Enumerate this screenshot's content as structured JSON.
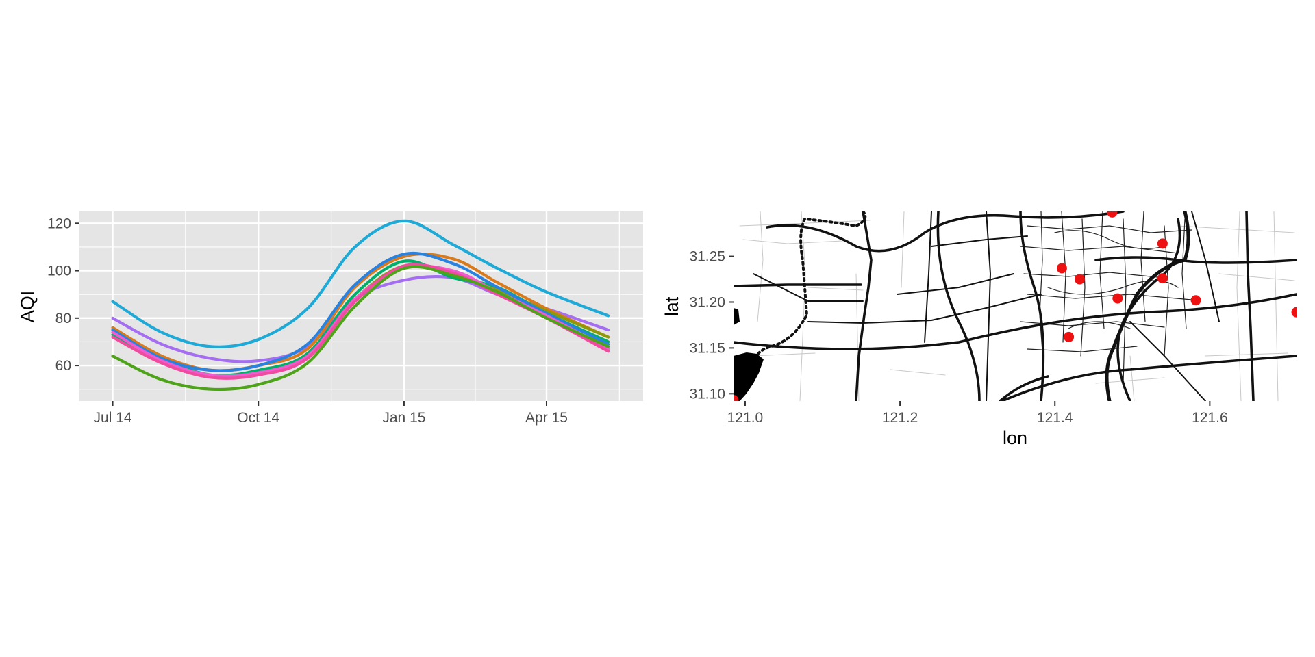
{
  "colors": {
    "panel_bg": "#e5e5e5",
    "grid": "#ffffff",
    "axis_text": "#4d4d4d",
    "title_text": "#000000",
    "station_marker": "#ee1111",
    "road": "#111111"
  },
  "chart_data": [
    {
      "type": "line",
      "xlabel": "",
      "ylabel": "AQI",
      "x_ticks": [
        "Jul 14",
        "Oct 14",
        "Jan 15",
        "Apr 15"
      ],
      "x_tick_dates": [
        "2014-07-01",
        "2014-10-01",
        "2015-01-01",
        "2015-04-01"
      ],
      "xlim": [
        "2014-06-10",
        "2015-06-01"
      ],
      "ylim": [
        45,
        125
      ],
      "y_ticks": [
        60,
        80,
        100,
        120
      ],
      "grid": true,
      "legend": "none",
      "x": [
        "2014-07-01",
        "2014-08-01",
        "2014-09-01",
        "2014-10-01",
        "2014-11-01",
        "2014-12-01",
        "2015-01-01",
        "2015-02-01",
        "2015-03-01",
        "2015-04-01",
        "2015-05-10"
      ],
      "series": [
        {
          "color": "#1fa9d6",
          "values": [
            87,
            74,
            68,
            71,
            84,
            110,
            121,
            111,
            101,
            91,
            81
          ]
        },
        {
          "color": "#a56ef2",
          "values": [
            80,
            69,
            63,
            62,
            68,
            88,
            96,
            97,
            90,
            84,
            75
          ]
        },
        {
          "color": "#d97a1c",
          "values": [
            76,
            64,
            58,
            60,
            67,
            93,
            106,
            105,
            95,
            84,
            72
          ]
        },
        {
          "color": "#8a9a0b",
          "values": [
            73,
            62,
            56,
            57,
            65,
            88,
            102,
            98,
            92,
            83,
            72
          ]
        },
        {
          "color": "#00b06a",
          "values": [
            73,
            63,
            56,
            58,
            65,
            90,
            104,
            97,
            93,
            82,
            70
          ]
        },
        {
          "color": "#2a82e0",
          "values": [
            75,
            63,
            58,
            60,
            69,
            94,
            107,
            103,
            93,
            82,
            69
          ]
        },
        {
          "color": "#f05bd0",
          "values": [
            74,
            62,
            56,
            57,
            64,
            88,
            101,
            100,
            91,
            81,
            67
          ]
        },
        {
          "color": "#ef4b9f",
          "values": [
            72,
            61,
            55,
            56,
            63,
            87,
            102,
            99,
            90,
            80,
            66
          ]
        },
        {
          "color": "#4fa31a",
          "values": [
            64,
            54,
            50,
            52,
            61,
            85,
            101,
            98,
            91,
            80,
            68
          ]
        }
      ]
    },
    {
      "type": "scatter",
      "xlabel": "lon",
      "ylabel": "lat",
      "x_ticks": [
        "121.0",
        "121.2",
        "121.4",
        "121.6"
      ],
      "y_ticks": [
        "31.10",
        "31.15",
        "31.20",
        "31.25"
      ],
      "xlim": [
        120.985,
        121.712
      ],
      "ylim": [
        31.092,
        31.299
      ],
      "grid": false,
      "legend": "none",
      "points": [
        {
          "lon": 121.474,
          "lat": 31.298
        },
        {
          "lon": 121.409,
          "lat": 31.237
        },
        {
          "lon": 121.432,
          "lat": 31.225
        },
        {
          "lon": 121.539,
          "lat": 31.264
        },
        {
          "lon": 121.539,
          "lat": 31.226
        },
        {
          "lon": 121.481,
          "lat": 31.204
        },
        {
          "lon": 121.582,
          "lat": 31.202
        },
        {
          "lon": 121.418,
          "lat": 31.162
        },
        {
          "lon": 121.712,
          "lat": 31.189
        },
        {
          "lon": 120.985,
          "lat": 31.093
        }
      ]
    }
  ]
}
